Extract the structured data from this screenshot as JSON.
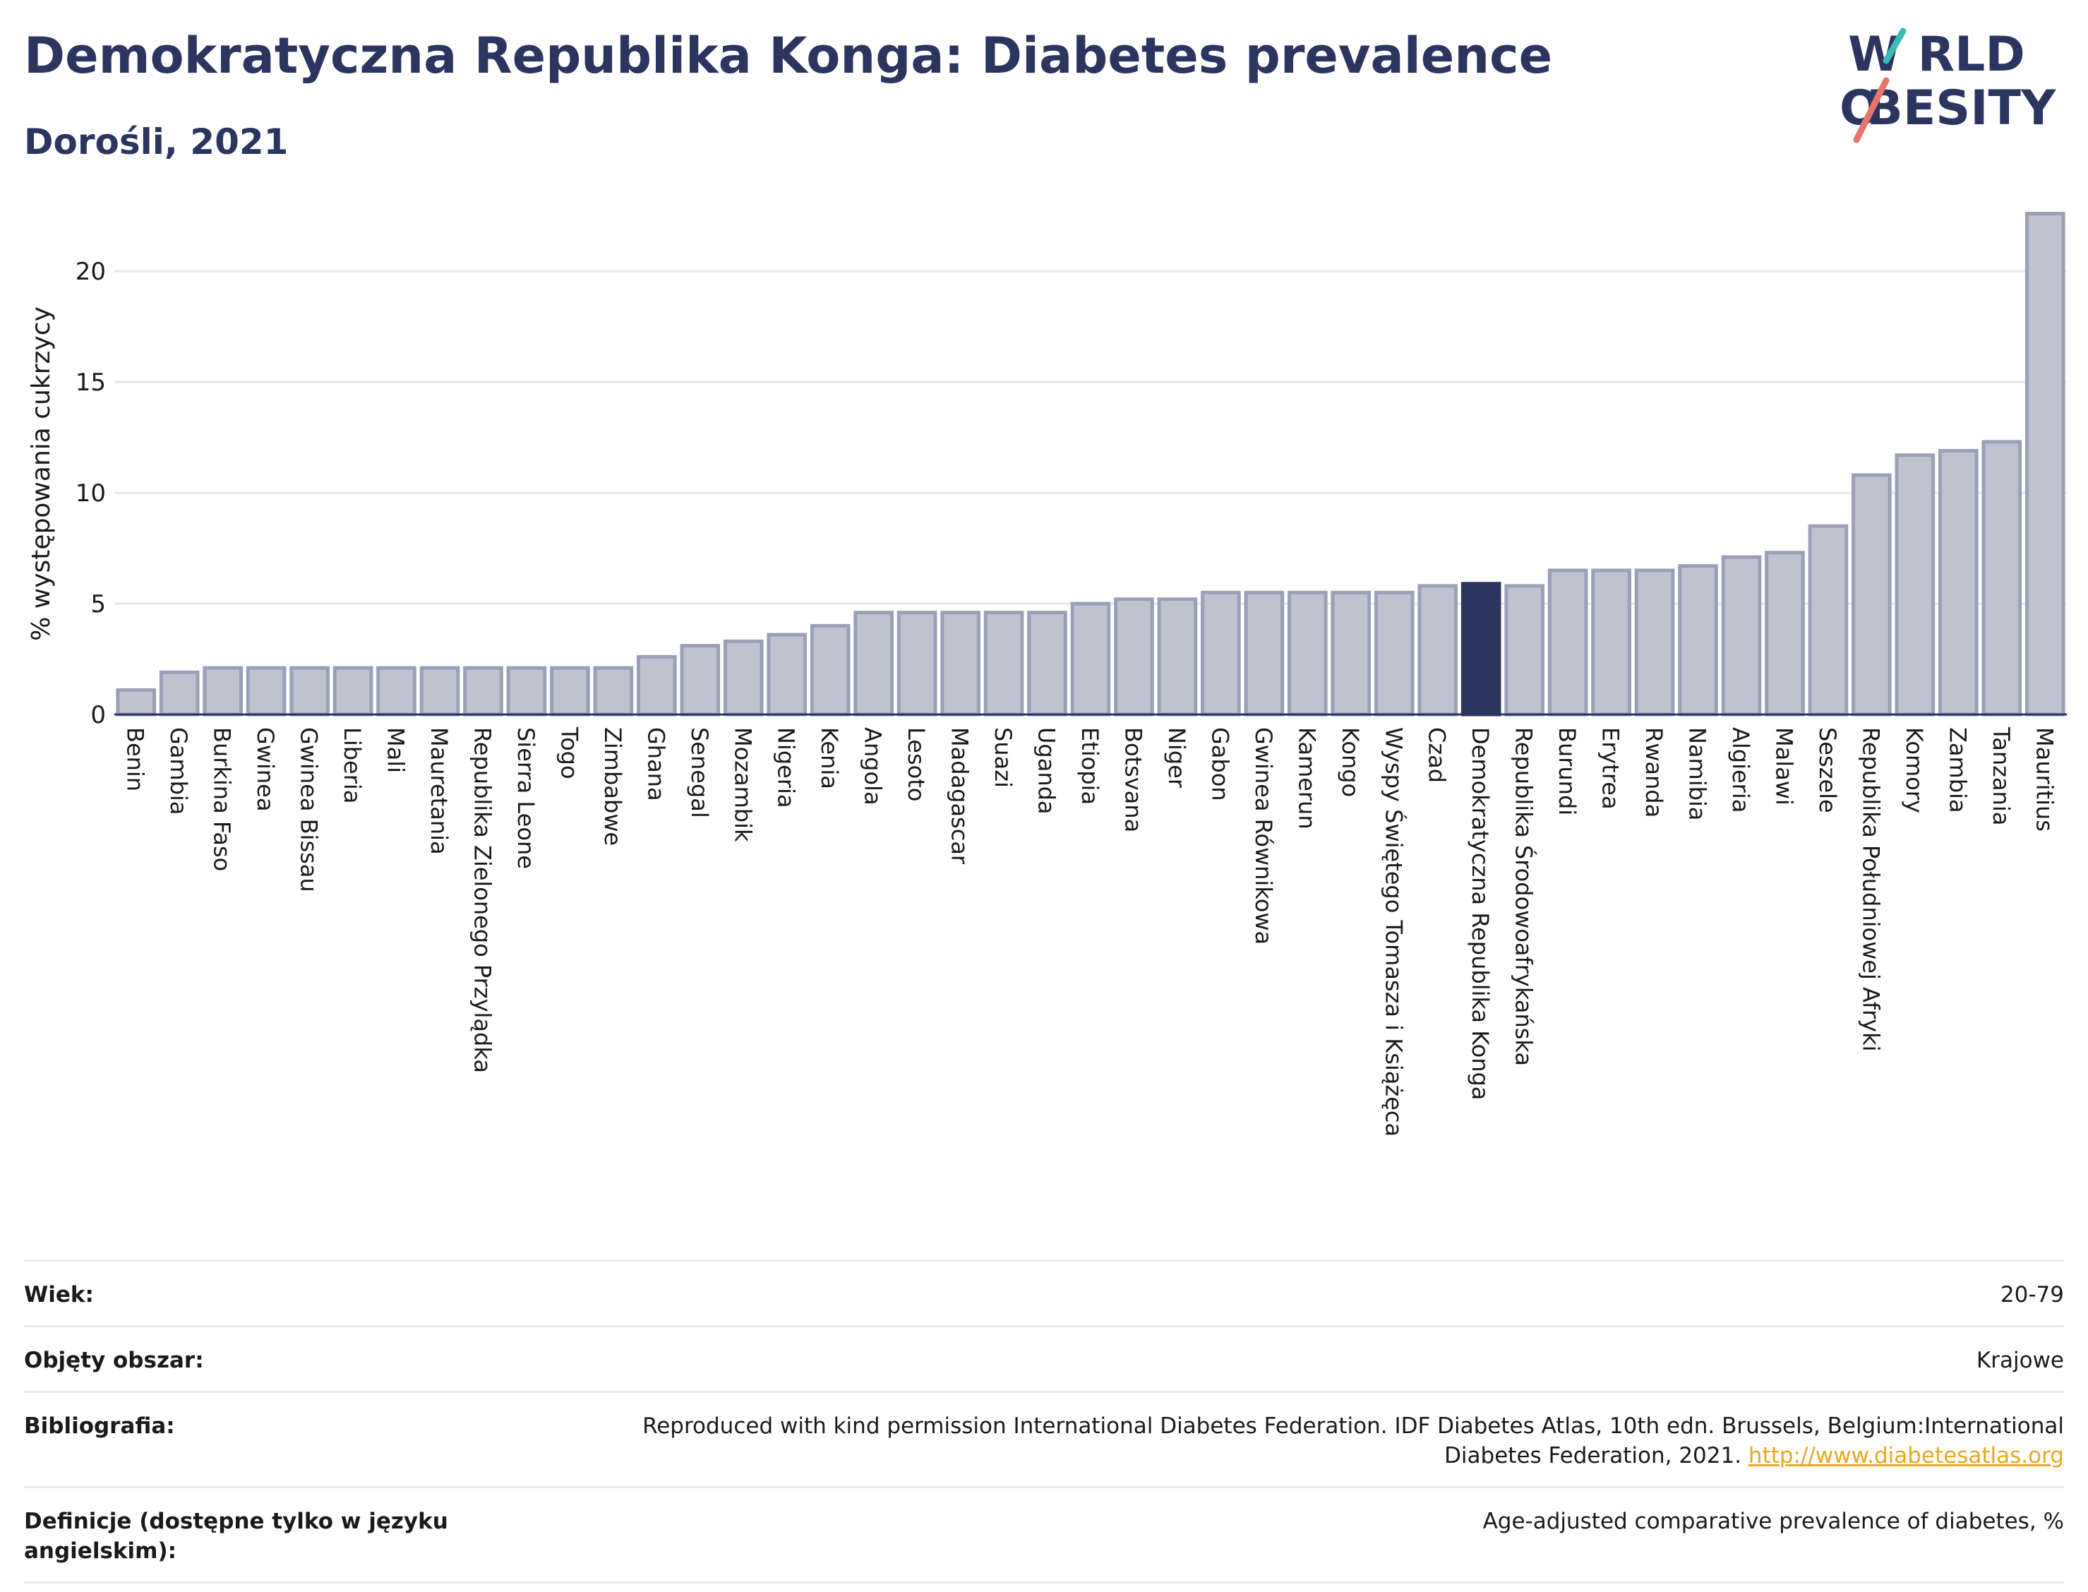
{
  "header": {
    "title": "Demokratyczna Republika Konga: Diabetes prevalence",
    "subtitle": "Dorośli, 2021"
  },
  "logo": {
    "line1": "W RLD",
    "line2": "BESITY",
    "o_letter": "O"
  },
  "colors": {
    "bar": "#bfc3d0",
    "bar_border": "#9aa0b8",
    "highlight": "#2b3560",
    "text": "#2b3560"
  },
  "chart_data": {
    "type": "bar",
    "ylabel": "% występowania cukrzycy",
    "ylim": [
      0,
      23
    ],
    "yticks": [
      0,
      5,
      10,
      15,
      20
    ],
    "grid": true,
    "highlight": "Demokratyczna Republika Konga",
    "categories": [
      "Benin",
      "Gambia",
      "Burkina Faso",
      "Gwinea",
      "Gwinea Bissau",
      "Liberia",
      "Mali",
      "Mauretania",
      "Republika Zielonego Przylądka",
      "Sierra Leone",
      "Togo",
      "Zimbabwe",
      "Ghana",
      "Senegal",
      "Mozambik",
      "Nigeria",
      "Kenia",
      "Angola",
      "Lesoto",
      "Madagascar",
      "Suazi",
      "Uganda",
      "Etiopia",
      "Botsvana",
      "Niger",
      "Gabon",
      "Gwinea Równikowa",
      "Kamerun",
      "Kongo",
      "Wyspy Świętego Tomasza i Książęca",
      "Czad",
      "Demokratyczna Republika Konga",
      "Republika Środowoafrykańska",
      "Burundi",
      "Erytrea",
      "Rwanda",
      "Namibia",
      "Algieria",
      "Malawi",
      "Seszele",
      "Republika Południowej Afryki",
      "Komory",
      "Zambia",
      "Tanzania",
      "Mauritius"
    ],
    "values": [
      1.1,
      1.9,
      2.1,
      2.1,
      2.1,
      2.1,
      2.1,
      2.1,
      2.1,
      2.1,
      2.1,
      2.1,
      2.6,
      3.1,
      3.3,
      3.6,
      4.0,
      4.6,
      4.6,
      4.6,
      4.6,
      4.6,
      5.0,
      5.2,
      5.2,
      5.5,
      5.5,
      5.5,
      5.5,
      5.5,
      5.8,
      5.9,
      5.8,
      6.5,
      6.5,
      6.5,
      6.7,
      7.1,
      7.3,
      8.5,
      10.8,
      11.7,
      11.9,
      12.3,
      22.6
    ]
  },
  "meta": {
    "rows": [
      {
        "label": "Wiek:",
        "value": "20-79"
      },
      {
        "label": "Objęty obszar:",
        "value": "Krajowe"
      },
      {
        "label": "Bibliografia:",
        "value": "Reproduced with kind permission International Diabetes Federation.  IDF Diabetes Atlas, 10th edn. Brussels, Belgium:International Diabetes Federation, 2021.",
        "link": "http://www.diabetesatlas.org"
      },
      {
        "label": "Definicje (dostępne tylko w języku angielskim):",
        "value": "Age-adjusted comparative prevalence of diabetes, %"
      }
    ]
  }
}
